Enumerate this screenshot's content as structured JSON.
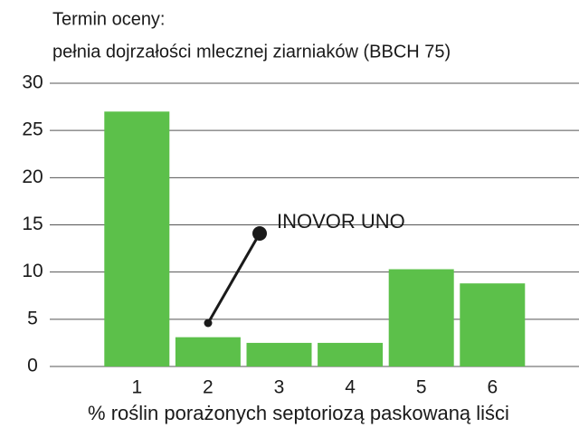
{
  "chart_data": {
    "type": "bar",
    "title": "Termin oceny:",
    "subtitle": "pełnia dojrzałości mlecznej ziarniaków (BBCH 75)",
    "x_label": "% roślin porażonych septoriozą paskowaną liści",
    "annotation": "INOVOR UNO",
    "categories": [
      "1",
      "2",
      "3",
      "4",
      "5",
      "6"
    ],
    "values": [
      27,
      3.1,
      2.5,
      2.5,
      10.3,
      8.8
    ],
    "color": "#5cc04a",
    "ylim": [
      0,
      30
    ],
    "yticks": [
      0,
      5,
      10,
      15,
      20,
      25,
      30
    ],
    "grid": true
  }
}
